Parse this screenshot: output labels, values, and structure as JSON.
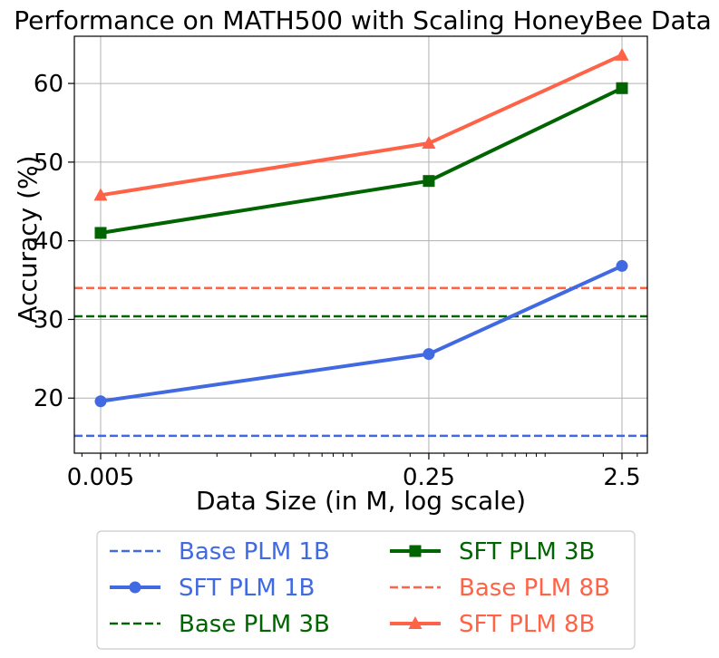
{
  "chart_data": {
    "type": "line",
    "title": "Performance on MATH500 with Scaling HoneyBee Data",
    "xlabel": "Data Size (in M, log scale)",
    "ylabel": "Accuracy (%)",
    "x_scale": "log",
    "x": [
      0.005,
      0.25,
      2.5
    ],
    "x_tick_labels": [
      "0.005",
      "0.25",
      "2.5"
    ],
    "y_ticks": [
      20,
      30,
      40,
      50,
      60
    ],
    "y_tick_labels": [
      "20",
      "30",
      "40",
      "50",
      "60"
    ],
    "ylim": [
      13,
      66
    ],
    "grid": true,
    "legend_position": "bottom",
    "series": [
      {
        "name": "Base PLM 1B",
        "kind": "baseline",
        "value": 15.2,
        "color": "#4169e1"
      },
      {
        "name": "SFT PLM 1B",
        "kind": "line",
        "marker": "circle",
        "values": [
          19.6,
          25.6,
          36.8
        ],
        "color": "#4169e1"
      },
      {
        "name": "Base PLM 3B",
        "kind": "baseline",
        "value": 30.4,
        "color": "#006400"
      },
      {
        "name": "SFT PLM 3B",
        "kind": "line",
        "marker": "square",
        "values": [
          41.0,
          47.6,
          59.4
        ],
        "color": "#006400"
      },
      {
        "name": "Base PLM 8B",
        "kind": "baseline",
        "value": 34.0,
        "color": "#ff6347"
      },
      {
        "name": "SFT PLM 8B",
        "kind": "line",
        "marker": "triangle",
        "values": [
          45.8,
          52.4,
          63.6
        ],
        "color": "#ff6347"
      }
    ]
  }
}
